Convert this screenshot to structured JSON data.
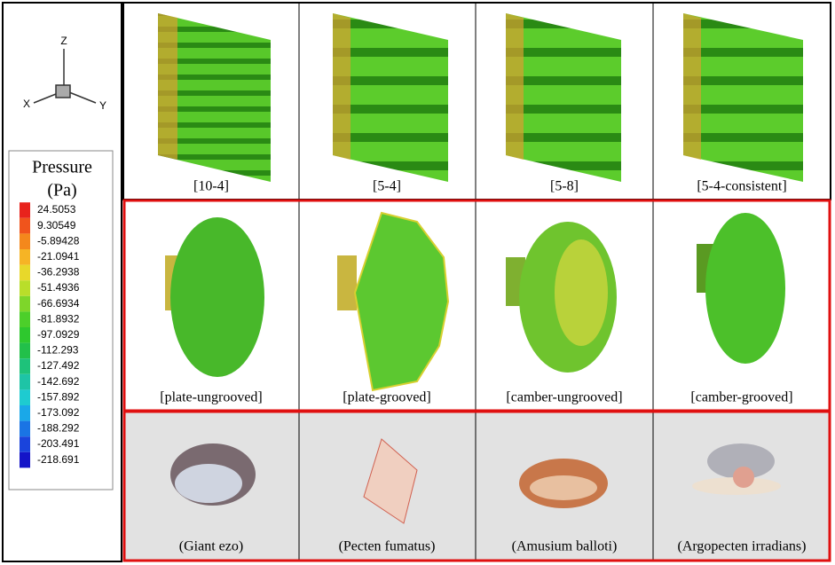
{
  "axes_triad": {
    "z": "Z",
    "x": "X",
    "y": "Y"
  },
  "legend": {
    "title": "Pressure",
    "unit": "(Pa)",
    "levels": [
      "24.5053",
      "9.30549",
      "-5.89428",
      "-21.0941",
      "-36.2938",
      "-51.4936",
      "-66.6934",
      "-81.8932",
      "-97.0929",
      "-112.293",
      "-127.492",
      "-142.692",
      "-157.892",
      "-173.092",
      "-188.292",
      "-203.491",
      "-218.691"
    ],
    "colors": [
      "#e8231c",
      "#f0541c",
      "#f4881c",
      "#f6b425",
      "#e8d82a",
      "#b9de2a",
      "#7ed62a",
      "#4ccf2a",
      "#2ec82e",
      "#22c04a",
      "#1ec27a",
      "#1ec4a6",
      "#1ecbd0",
      "#1aa8e8",
      "#1a74e4",
      "#1a44dc",
      "#1414c8"
    ]
  },
  "rows": [
    {
      "captions": [
        "[10-4]",
        "[5-4]",
        "[5-8]",
        "[5-4-consistent]"
      ]
    },
    {
      "captions": [
        "[plate-ungrooved]",
        "[plate-grooved]",
        "[camber-ungrooved]",
        "[camber-grooved]"
      ]
    },
    {
      "captions": [
        "(Giant ezo)",
        "(Pecten fumatus)",
        "(Amusium balloti)",
        "(Argopecten irradians)"
      ]
    }
  ]
}
